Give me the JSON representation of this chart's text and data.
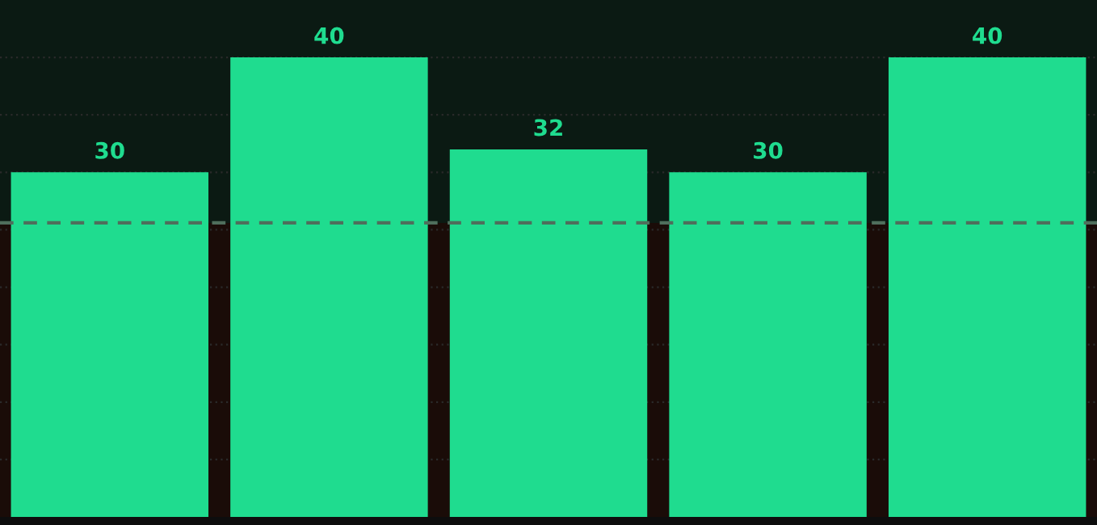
{
  "chart_data": {
    "type": "bar",
    "categories": [
      null,
      null,
      null,
      null,
      null
    ],
    "values": [
      30,
      40,
      32,
      30,
      40
    ],
    "color": "#1fdc8f",
    "data_labels": true,
    "ylim": [
      0,
      45
    ],
    "yticks": [
      {
        "value": 5,
        "label": null
      },
      {
        "value": 10,
        "label": null
      },
      {
        "value": 15,
        "label": null
      },
      {
        "value": 20,
        "label": null
      },
      {
        "value": 25,
        "label": null
      },
      {
        "value": 30,
        "label": null
      },
      {
        "value": 35,
        "label": null
      },
      {
        "value": 40,
        "label": null
      }
    ],
    "grid": "y",
    "bands": [
      {
        "axis": "y",
        "from": 25.6,
        "to": 45,
        "color": "#0b1a13"
      },
      {
        "axis": "y",
        "from": 0,
        "to": 25.6,
        "color": "#1a0c08"
      }
    ],
    "ref_lines": [
      {
        "axis": "y",
        "value": 25.6,
        "color": "#4f6e5c",
        "line_style": "dashed"
      }
    ]
  }
}
